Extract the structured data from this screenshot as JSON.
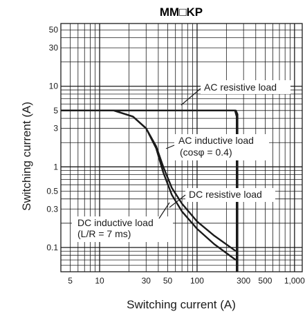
{
  "chart_data": {
    "type": "line",
    "title": "MM□KP",
    "xlabel": "Switching current (A)",
    "ylabel": "Switching current (A)",
    "x_scale": "log",
    "y_scale": "log",
    "xlim": [
      4,
      1200
    ],
    "ylim": [
      0.05,
      60
    ],
    "grid": true,
    "x_ticks": [
      {
        "value": 5,
        "label": "5"
      },
      {
        "value": 10,
        "label": "10"
      },
      {
        "value": 30,
        "label": "30"
      },
      {
        "value": 50,
        "label": "50"
      },
      {
        "value": 100,
        "label": "100"
      },
      {
        "value": 300,
        "label": "300"
      },
      {
        "value": 500,
        "label": "500"
      },
      {
        "value": 1000,
        "label": "1,000"
      }
    ],
    "y_ticks": [
      {
        "value": 0.1,
        "label": "0.1"
      },
      {
        "value": 0.3,
        "label": "0.3"
      },
      {
        "value": 0.5,
        "label": "0.5"
      },
      {
        "value": 1,
        "label": "1"
      },
      {
        "value": 3,
        "label": "3"
      },
      {
        "value": 5,
        "label": "5"
      },
      {
        "value": 10,
        "label": "10"
      },
      {
        "value": 30,
        "label": "30"
      },
      {
        "value": 50,
        "label": "50"
      }
    ],
    "series": [
      {
        "name": "AC resistive load",
        "x": [
          4,
          250,
          260,
          260
        ],
        "y": [
          5,
          5,
          4.5,
          0.05
        ]
      },
      {
        "name": "AC inductive load (cosφ = 0.4)",
        "x": [
          4,
          245,
          255,
          255
        ],
        "y": [
          5,
          5,
          4.2,
          0.05
        ]
      },
      {
        "name": "DC resistive load",
        "x": [
          4,
          14,
          22,
          30,
          38,
          45,
          55,
          70,
          100,
          150,
          250
        ],
        "y": [
          5,
          5,
          4.2,
          3,
          1.8,
          1.0,
          0.55,
          0.35,
          0.21,
          0.14,
          0.09
        ]
      },
      {
        "name": "DC inductive load (L/R = 7 ms)",
        "x": [
          4,
          14,
          22,
          30,
          38,
          45,
          55,
          70,
          100,
          150,
          250
        ],
        "y": [
          5,
          5,
          4.2,
          3,
          1.7,
          0.85,
          0.45,
          0.28,
          0.17,
          0.11,
          0.07
        ]
      }
    ],
    "annotations": [
      {
        "text": "AC resistive load"
      },
      {
        "text": "AC inductive load"
      },
      {
        "text": "(cosφ = 0.4)"
      },
      {
        "text": "DC resistive load"
      },
      {
        "text": "DC inductive load"
      },
      {
        "text": "(L/R = 7 ms)"
      }
    ],
    "colors": {
      "line": "#1a1a1a",
      "grid": "#1a1a1a",
      "background": "#ffffff"
    }
  }
}
